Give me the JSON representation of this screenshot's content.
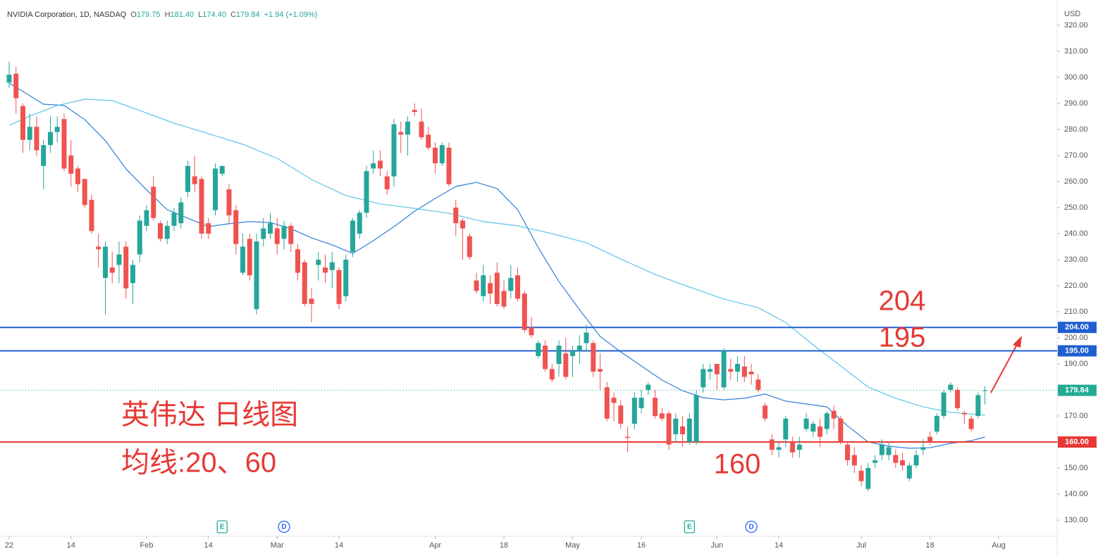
{
  "chart_data": {
    "type": "candlestick",
    "header": {
      "symbol": "NVIDIA Corporation, 1D, NASDAQ",
      "legend": [
        {
          "key": "O",
          "text": "179.75"
        },
        {
          "key": "H",
          "text": "181.40"
        },
        {
          "key": "L",
          "text": "174.40"
        },
        {
          "key": "C",
          "text": "179.84"
        },
        {
          "text": "+1.94 (+1.09%)"
        }
      ]
    },
    "axis_unit": "USD",
    "up_color": "#26a69a",
    "down_color": "#ef5350",
    "open": [
      298,
      301.4,
      289,
      276,
      281,
      266,
      274,
      279,
      284,
      270,
      265,
      261,
      253,
      235,
      223,
      227,
      228,
      235,
      221,
      232,
      243,
      258,
      244,
      238,
      243,
      244,
      256,
      262,
      261,
      244,
      249,
      263,
      257,
      249,
      225,
      238,
      211,
      238,
      240,
      242,
      238,
      243,
      234,
      229,
      215,
      228,
      227,
      226,
      226,
      216,
      233,
      240,
      248,
      265,
      268,
      262,
      262,
      279,
      278,
      287.5,
      283,
      278,
      273,
      267,
      273,
      250,
      245,
      239,
      222,
      216,
      221,
      225,
      218,
      218,
      224,
      217,
      204,
      193,
      197,
      188,
      190,
      194,
      193,
      195,
      198,
      198,
      188,
      181,
      177,
      174,
      162,
      167,
      173,
      180,
      177,
      171,
      171,
      163,
      166,
      160,
      160,
      181,
      187,
      190,
      181,
      188,
      187,
      189,
      187,
      184,
      174,
      161,
      157,
      161,
      160,
      157,
      165,
      164,
      166,
      165,
      172,
      169,
      159,
      155,
      149,
      142,
      152,
      155,
      155,
      155,
      153,
      146,
      151,
      157,
      162,
      164,
      170,
      180,
      180,
      171.2,
      169,
      170,
      179.75
    ],
    "high": [
      306,
      304,
      290,
      286,
      285,
      276,
      285,
      285,
      286,
      276,
      266,
      261,
      255,
      240,
      237,
      233,
      237,
      237,
      230,
      247,
      251,
      262,
      245,
      245,
      250,
      254,
      268,
      270,
      262,
      246,
      267,
      266,
      259,
      251,
      240,
      240,
      240,
      246,
      248,
      246,
      245,
      244,
      236,
      230,
      219,
      233,
      232,
      233,
      227,
      232,
      246,
      249,
      266,
      272,
      272,
      264,
      284,
      283,
      285,
      290,
      288,
      281,
      275,
      275,
      275,
      253,
      246,
      240,
      225,
      228,
      224,
      229,
      222,
      228,
      227,
      218,
      208,
      199,
      199,
      190,
      199,
      200,
      197,
      201,
      205,
      199,
      194,
      183,
      179,
      176,
      166,
      179,
      180,
      183,
      180,
      173,
      172,
      171,
      170,
      171,
      180,
      190,
      190,
      190,
      196,
      192,
      193,
      193,
      190,
      186,
      175,
      163,
      160,
      170,
      162,
      162,
      171,
      168,
      169,
      172,
      174,
      170,
      160,
      158,
      151,
      152,
      155,
      161,
      160,
      157,
      156,
      152,
      157,
      161,
      164,
      171,
      180,
      183,
      181,
      172,
      170,
      179,
      181.4
    ],
    "low": [
      296,
      286,
      271,
      272,
      270,
      257,
      271,
      275,
      264,
      258,
      256,
      250,
      240,
      227,
      209,
      221,
      221,
      215,
      213,
      229,
      241,
      245,
      237,
      236,
      241,
      242,
      254,
      256,
      238,
      238,
      247,
      262,
      244,
      232,
      224,
      222,
      209,
      235,
      238,
      232,
      234,
      233,
      222,
      212,
      206,
      222,
      221,
      219,
      211,
      214,
      231,
      238,
      246,
      263,
      262,
      255,
      258,
      271,
      270,
      285,
      276,
      272,
      263,
      266,
      258,
      239,
      230,
      230,
      217,
      214,
      213,
      212,
      211,
      215,
      214,
      202,
      200,
      192,
      187,
      183,
      185,
      184,
      185,
      190,
      195,
      185,
      180,
      168,
      168,
      165,
      156,
      165,
      171,
      178,
      169,
      168,
      157,
      160,
      158,
      159,
      159,
      179,
      184,
      180,
      180,
      184,
      183,
      183,
      182,
      179,
      168,
      155,
      154,
      158,
      154,
      154,
      164,
      162,
      158,
      163,
      165,
      159,
      151,
      148,
      143,
      141,
      150,
      153,
      153,
      150,
      149,
      145,
      150,
      155,
      159,
      163,
      169,
      179,
      172,
      167,
      164,
      169,
      174.4
    ],
    "close": [
      301,
      292,
      276,
      281,
      272,
      274,
      279,
      281,
      265,
      263,
      259,
      251,
      241,
      234,
      235,
      225,
      232,
      219,
      228,
      245,
      249,
      246,
      238,
      243,
      248,
      252,
      266,
      259,
      240,
      240,
      265,
      266,
      247,
      236,
      235,
      224,
      237,
      242,
      244,
      236,
      243,
      236,
      225,
      213,
      213,
      230,
      225,
      229,
      213,
      230,
      245,
      248,
      264,
      267,
      265,
      257,
      282,
      278,
      283,
      286.7,
      277,
      273,
      267,
      274,
      259,
      244,
      242,
      231,
      218,
      224,
      217,
      213,
      212,
      223,
      215,
      203,
      201,
      198,
      188,
      184,
      197,
      185,
      195,
      197,
      202,
      187,
      187,
      169,
      175,
      167,
      161.6,
      177,
      177,
      182,
      170,
      169,
      159,
      169,
      163,
      169,
      178,
      188,
      188,
      186,
      195,
      187,
      190,
      185,
      186,
      180,
      169,
      157,
      158,
      169,
      156,
      159,
      169,
      167,
      162,
      171,
      169,
      160,
      153,
      151,
      145,
      150,
      153,
      159,
      158,
      152,
      151,
      151,
      155,
      158,
      160,
      170,
      179,
      182,
      173,
      170.6,
      165,
      178,
      179.84
    ],
    "series": [
      {
        "color": "#2f7fd8",
        "x": [
          0,
          2,
          5,
          8,
          11,
          14,
          17,
          20,
          23,
          26,
          29,
          32,
          35,
          38,
          41,
          44,
          47,
          50,
          53,
          56,
          59,
          62,
          65,
          68,
          71,
          74,
          77,
          80,
          83,
          86,
          89,
          92,
          95,
          98,
          101,
          104,
          107,
          110,
          113,
          116,
          119,
          122,
          125,
          128,
          131,
          134,
          137,
          140,
          142
        ],
        "values": [
          297.8,
          294.6,
          289.7,
          289.2,
          283.8,
          275.7,
          264.9,
          256.8,
          249.2,
          245.9,
          242.7,
          243.8,
          244.6,
          244.3,
          241.9,
          238.4,
          235.7,
          232.4,
          237.3,
          242.7,
          248.6,
          253.5,
          258.1,
          259.7,
          257.3,
          249.2,
          234.6,
          221.6,
          210.8,
          200.5,
          194.6,
          189.2,
          183.8,
          179.7,
          177.0,
          176.2,
          176.8,
          178.4,
          175.7,
          174.6,
          173.5,
          166.2,
          160.0,
          158.4,
          157.6,
          157.8,
          159.5,
          160.5,
          161.9
        ]
      },
      {
        "color": "#5cc6e6",
        "x": [
          0,
          3,
          7,
          11,
          15,
          19,
          24,
          29,
          34,
          39,
          44,
          49,
          54,
          59,
          64,
          69,
          74,
          79,
          84,
          89,
          94,
          99,
          104,
          109,
          113,
          117,
          121,
          125,
          129,
          133,
          137,
          142
        ],
        "values": [
          281.6,
          285.1,
          289.2,
          291.6,
          291.1,
          287.3,
          282.4,
          278.4,
          274.3,
          268.9,
          260.8,
          254.6,
          251.4,
          249.7,
          247.8,
          244.6,
          243.0,
          240.0,
          236.5,
          230.3,
          224.3,
          219.5,
          214.9,
          211.6,
          205.9,
          197.3,
          189.2,
          181.1,
          176.8,
          173.5,
          171.4,
          170.3
        ]
      }
    ],
    "xlim": [
      -1.33,
      152.5
    ],
    "xticks": [
      {
        "value": 0,
        "label": "22"
      },
      {
        "value": 9,
        "label": "14"
      },
      {
        "value": 20,
        "label": "Feb"
      },
      {
        "value": 29,
        "label": "14"
      },
      {
        "value": 39,
        "label": "Mar"
      },
      {
        "value": 48,
        "label": "14"
      },
      {
        "value": 62,
        "label": "Apr"
      },
      {
        "value": 72,
        "label": "18"
      },
      {
        "value": 82,
        "label": "May"
      },
      {
        "value": 92,
        "label": "16"
      },
      {
        "value": 103,
        "label": "Jun"
      },
      {
        "value": 112,
        "label": "14"
      },
      {
        "value": 124,
        "label": "Jul"
      },
      {
        "value": 134,
        "label": "18"
      },
      {
        "value": 144,
        "label": "Aug"
      }
    ],
    "ylim": [
      123.8,
      329.7
    ],
    "yticks": [
      {
        "value": 130,
        "label": "130.00"
      },
      {
        "value": 140,
        "label": "140.00"
      },
      {
        "value": 150,
        "label": "150.00"
      },
      {
        "value": 160,
        "label": "160.00"
      },
      {
        "value": 170,
        "label": "170.00"
      },
      {
        "value": 180,
        "label": "180.00"
      },
      {
        "value": 190,
        "label": "190.00"
      },
      {
        "value": 200,
        "label": "200.00"
      },
      {
        "value": 210,
        "label": "210.00"
      },
      {
        "value": 220,
        "label": "220.00"
      },
      {
        "value": 230,
        "label": "230.00"
      },
      {
        "value": 240,
        "label": "240.00"
      },
      {
        "value": 250,
        "label": "250.00"
      },
      {
        "value": 260,
        "label": "260.00"
      },
      {
        "value": 270,
        "label": "270.00"
      },
      {
        "value": 280,
        "label": "280.00"
      },
      {
        "value": 290,
        "label": "290.00"
      },
      {
        "value": 300,
        "label": "300.00"
      },
      {
        "value": 310,
        "label": "310.00"
      },
      {
        "value": 320,
        "label": "320.00"
      }
    ],
    "grid": false,
    "hlines": [
      {
        "value": 204,
        "label": "204.00",
        "color": "#1f5fd0"
      },
      {
        "value": 195,
        "label": "195.00",
        "color": "#1f5fd0"
      },
      {
        "value": 160,
        "label": "160.00",
        "color": "#e53935"
      }
    ],
    "last_price": {
      "value": 179.84,
      "label": "179.84",
      "color": "#22ab94"
    },
    "annotations": [
      "204",
      "195",
      "160",
      "英伟达 日线图",
      "均线:20、60"
    ],
    "annotation_color": "#e53935",
    "events": [
      {
        "x": 31,
        "label": "E"
      },
      {
        "x": 40,
        "label": "D"
      },
      {
        "x": 99,
        "label": "E"
      },
      {
        "x": 108,
        "label": "D"
      }
    ]
  }
}
